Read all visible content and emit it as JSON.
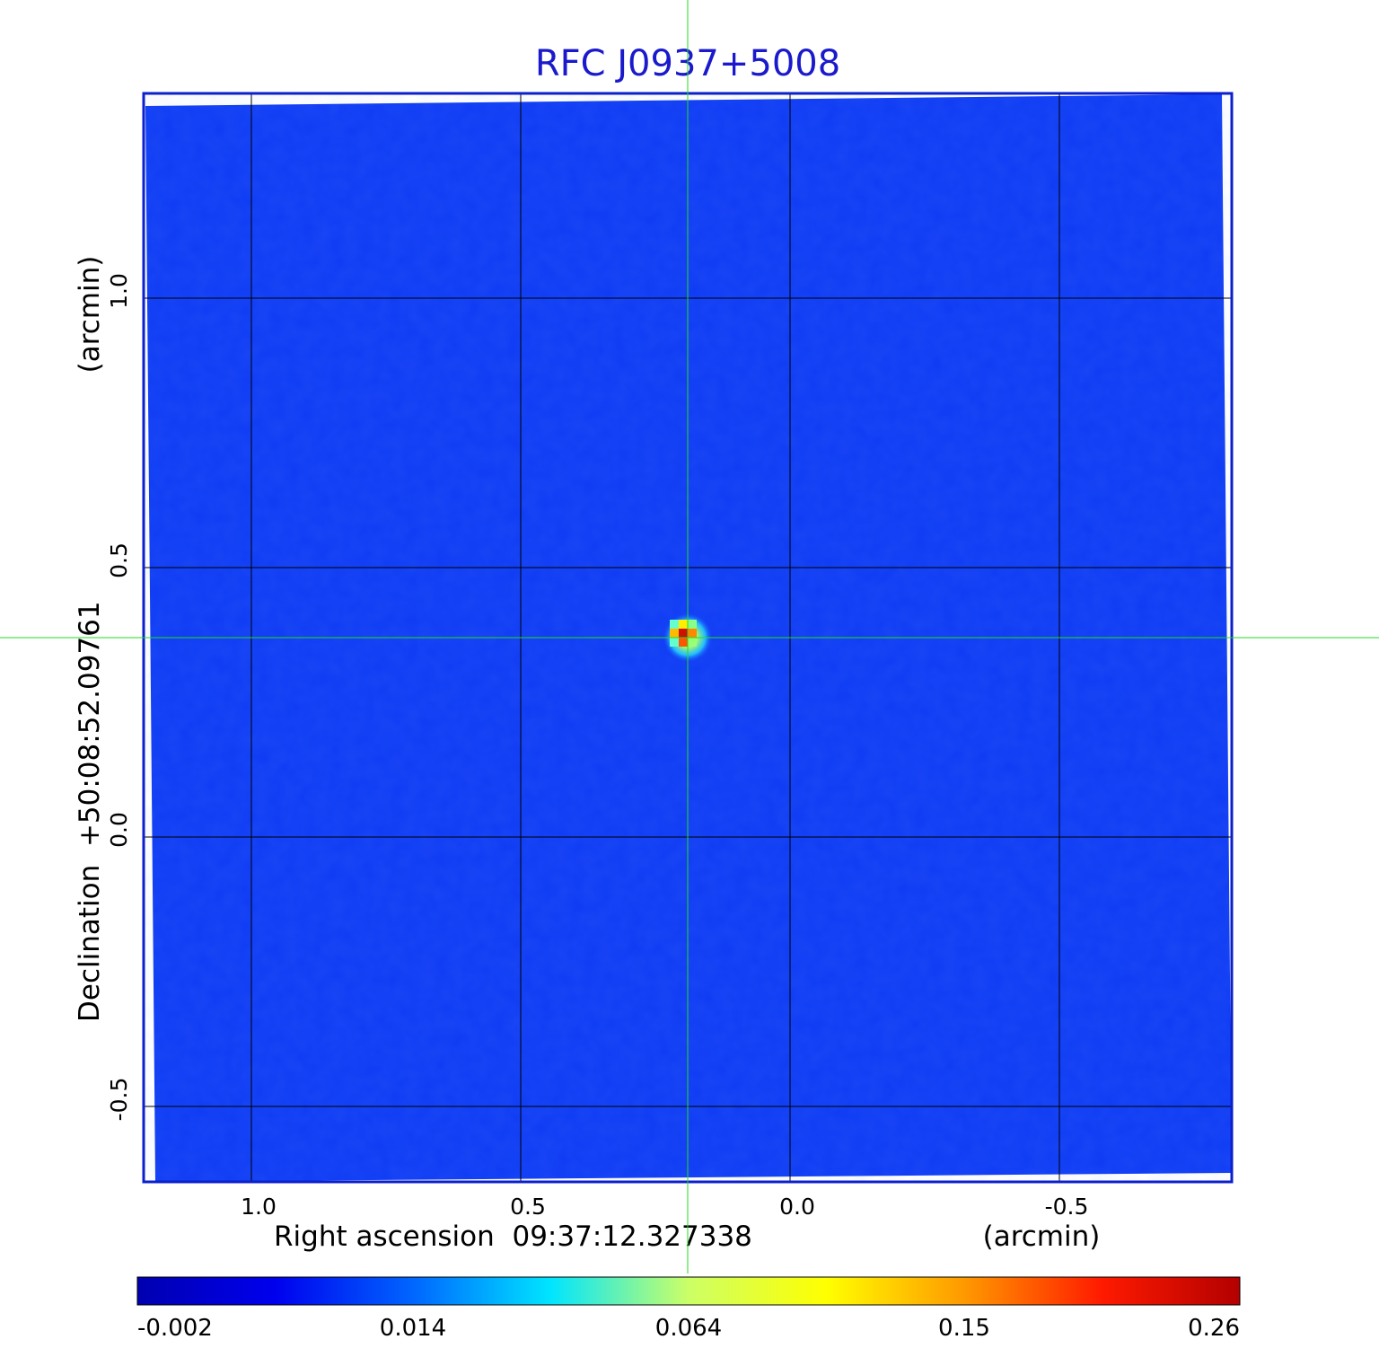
{
  "chart_data": {
    "type": "heatmap",
    "title": "RFC J0937+5008",
    "xlabel": "Right ascension  09:37:12.327338",
    "xunit": "(arcmin)",
    "ylabel": "Declination  +50:08:52.09761",
    "yunit": "(arcmin)",
    "x_ticks": [
      1.0,
      0.5,
      0.0,
      -0.5
    ],
    "x_tick_labels": [
      "1.0",
      "0.5",
      "0.0",
      "-0.5"
    ],
    "y_ticks": [
      1.0,
      0.5,
      0.0,
      -0.5
    ],
    "y_tick_labels": [
      "1.0",
      "0.5",
      "0.0",
      -0.5
    ],
    "xlim": [
      1.2,
      -0.82
    ],
    "ylim": [
      -0.64,
      1.38
    ],
    "grid": true,
    "crosshair": {
      "x": 0.19,
      "y": 0.37
    },
    "peak": {
      "x": 0.19,
      "y": 0.37,
      "value": 0.26
    },
    "colorbar": {
      "ticks": [
        -0.002,
        0.014,
        0.064,
        0.15,
        0.26
      ],
      "tick_labels": [
        "-0.002",
        "0.014",
        "0.064",
        "0.15",
        "0.26"
      ],
      "colormap": [
        "#0000b0",
        "#0000ee",
        "#0066ff",
        "#00e5ff",
        "#ccff66",
        "#ffff00",
        "#ff9900",
        "#ff1a00",
        "#b30000"
      ]
    },
    "colors": {
      "title": "#1a1acc",
      "frame": "#0b1fcc",
      "background": "#0f3cf4",
      "crosshair": "#22dd22",
      "grid": "#000000"
    }
  }
}
